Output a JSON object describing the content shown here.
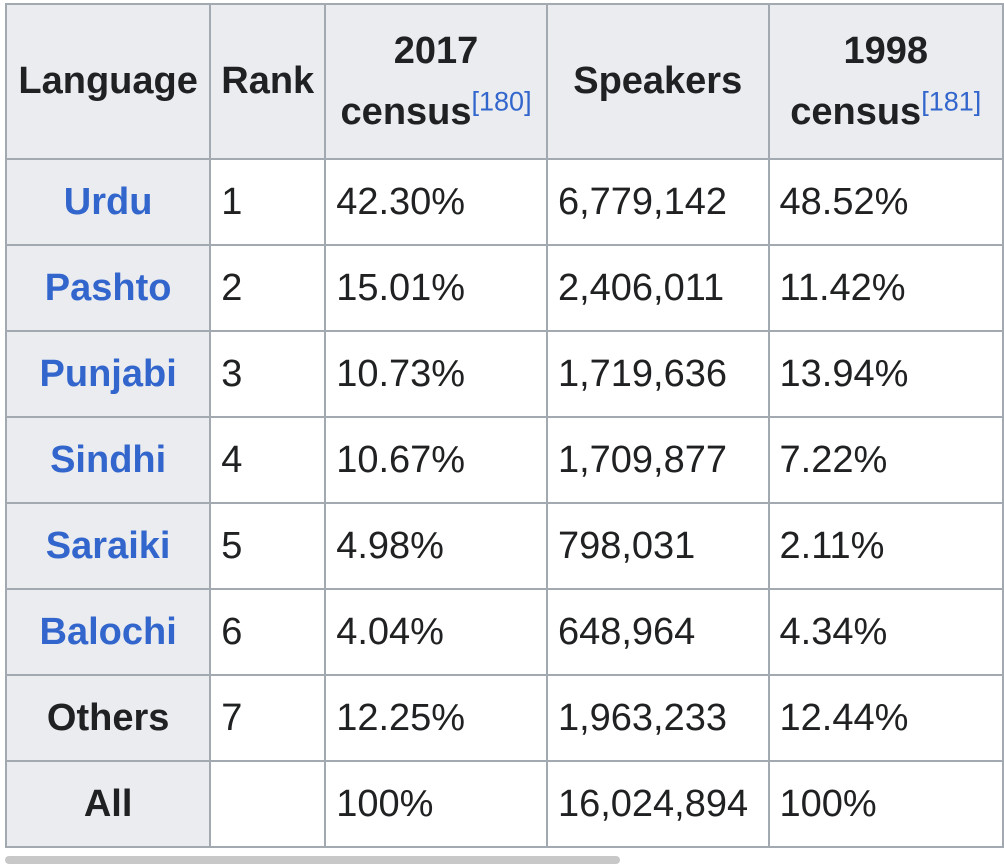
{
  "table": {
    "headers": {
      "language": "Language",
      "rank": "Rank",
      "census2017_line1": "2017",
      "census2017_line2": "census",
      "census2017_ref": "[180]",
      "speakers": "Speakers",
      "census1998_line1": "1998",
      "census1998_line2": "census",
      "census1998_ref": "[181]"
    },
    "rows": [
      {
        "language": "Urdu",
        "rank": "1",
        "census2017": "42.30%",
        "speakers": "6,779,142",
        "census1998": "48.52%"
      },
      {
        "language": "Pashto",
        "rank": "2",
        "census2017": "15.01%",
        "speakers": "2,406,011",
        "census1998": "11.42%"
      },
      {
        "language": "Punjabi",
        "rank": "3",
        "census2017": "10.73%",
        "speakers": "1,719,636",
        "census1998": "13.94%"
      },
      {
        "language": "Sindhi",
        "rank": "4",
        "census2017": "10.67%",
        "speakers": "1,709,877",
        "census1998": "7.22%"
      },
      {
        "language": "Saraiki",
        "rank": "5",
        "census2017": "4.98%",
        "speakers": "798,031",
        "census1998": "2.11%"
      },
      {
        "language": "Balochi",
        "rank": "6",
        "census2017": "4.04%",
        "speakers": "648,964",
        "census1998": "4.34%"
      },
      {
        "language": "Others",
        "rank": "7",
        "census2017": "12.25%",
        "speakers": "1,963,233",
        "census1998": "12.44%"
      },
      {
        "language": "All",
        "rank": "",
        "census2017": "100%",
        "speakers": "16,024,894",
        "census1998": "100%"
      }
    ]
  },
  "colors": {
    "link": "#3366cc",
    "header_bg": "#eaecf0",
    "border": "#a2a9b1",
    "text": "#202122"
  }
}
